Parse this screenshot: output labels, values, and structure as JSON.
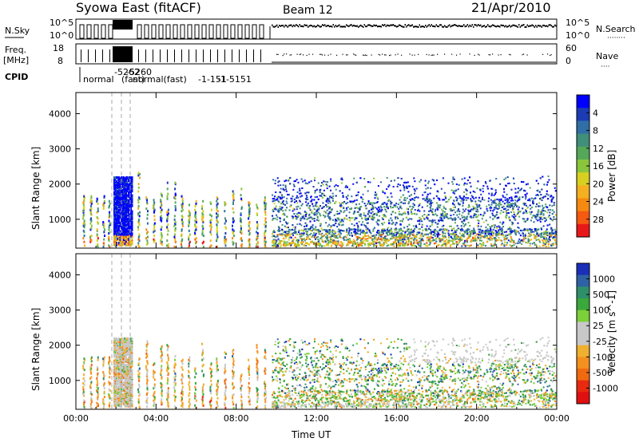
{
  "header": {
    "title": "Syowa East (fitACF)",
    "beam": "Beam 12",
    "date": "21/Apr/2010"
  },
  "top_panel": {
    "left_label_1": "N.Sky",
    "left_label_2": "Freq.",
    "left_label_3": "[MHz]",
    "left_label_4": "CPID",
    "right_label_1": "N.Search",
    "right_label_2": "Nave",
    "nsky_ticks": [
      "10^5",
      "10^0"
    ],
    "nsearch_ticks": [
      "10^5",
      "10^0"
    ],
    "freq_ticks": [
      "18",
      "8"
    ],
    "nave_ticks": [
      "60",
      "0"
    ],
    "cpid_labels": [
      "normal",
      "-5262",
      "-5260",
      "(fast)",
      "normal(fast)",
      "-1-151",
      "-1-5151"
    ]
  },
  "chart_data": [
    {
      "type": "heatmap",
      "name": "power",
      "ylabel": "Slant Range [km]",
      "xlabel": "Time UT",
      "ylim": [
        180,
        4600
      ],
      "yticks": [
        "1000",
        "2000",
        "3000",
        "4000"
      ],
      "xticks": [
        "00:00",
        "04:00",
        "08:00",
        "12:00",
        "16:00",
        "20:00",
        "00:00"
      ],
      "colorbar": {
        "label": "Power [dB]",
        "ticks": [
          "4",
          "8",
          "12",
          "16",
          "20",
          "24",
          "28"
        ],
        "colors": [
          "#0000ff",
          "#1c3cb4",
          "#2f6fa6",
          "#3f8f7a",
          "#55a85a",
          "#8ac63d",
          "#d8d020",
          "#f4b020",
          "#f68a10",
          "#f45a10",
          "#e81818"
        ]
      }
    },
    {
      "type": "heatmap",
      "name": "velocity",
      "ylabel": "Slant Range [km]",
      "xlabel": "Time UT",
      "ylim": [
        180,
        4600
      ],
      "yticks": [
        "1000",
        "2000",
        "3000",
        "4000"
      ],
      "xticks": [
        "00:00",
        "04:00",
        "08:00",
        "12:00",
        "16:00",
        "20:00",
        "00:00"
      ],
      "colorbar": {
        "label": "Velocity [m s^-1]",
        "ticks": [
          "1000",
          "500",
          "100",
          "25",
          "-25",
          "-100",
          "-500",
          "-1000"
        ],
        "colors": [
          "#1a2fb8",
          "#2f62a4",
          "#2f8f6a",
          "#3aa83a",
          "#7cd03a",
          "#c8c8c8",
          "#c8c8c8",
          "#f0b030",
          "#f49020",
          "#f06a10",
          "#e82a10",
          "#e01010"
        ]
      }
    }
  ]
}
